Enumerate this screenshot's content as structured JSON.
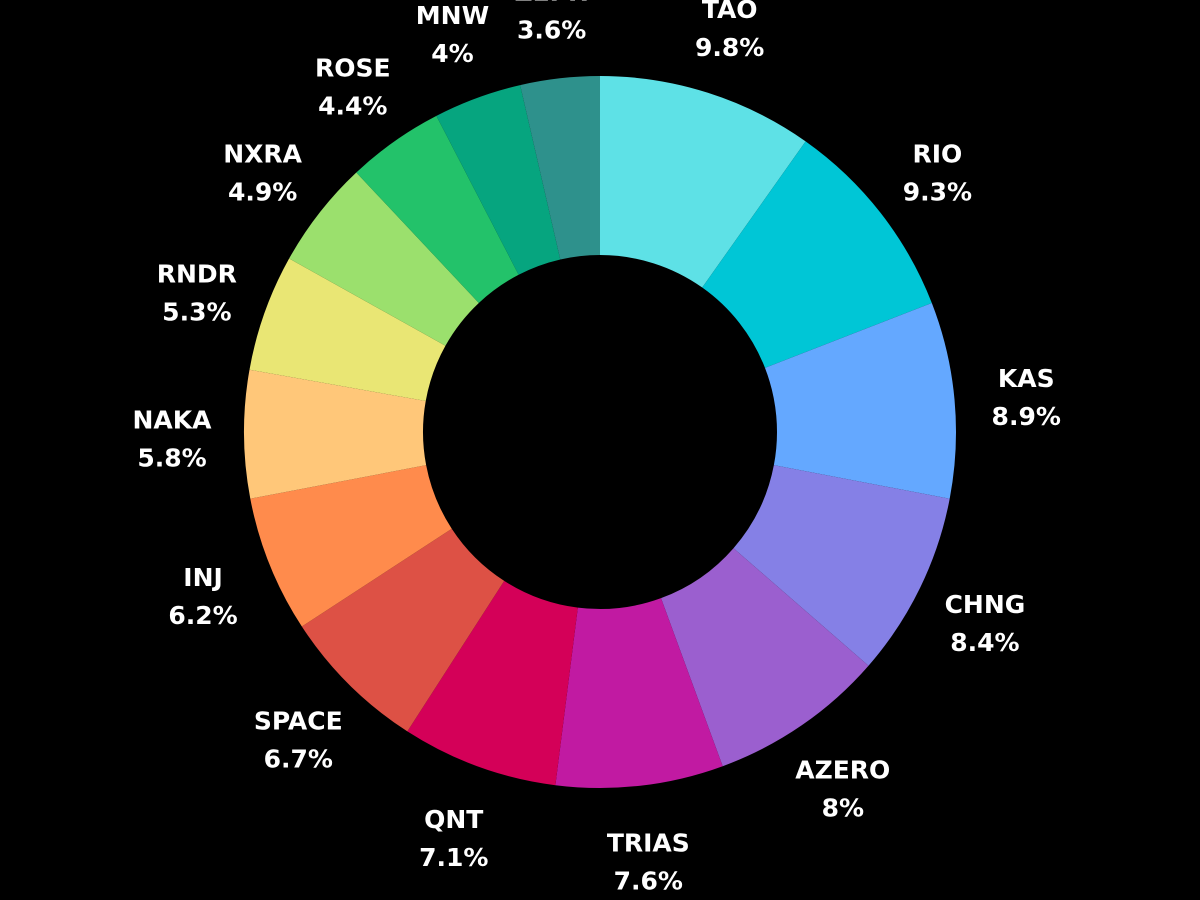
{
  "chart_data": {
    "type": "pie",
    "style": "donut",
    "start_at": "top",
    "direction": "clockwise",
    "slices": [
      {
        "label": "TAO",
        "value": 9.8,
        "value_label": "9.8%",
        "color": "#5ee1e6"
      },
      {
        "label": "RIO",
        "value": 9.3,
        "value_label": "9.3%",
        "color": "#00c6d6"
      },
      {
        "label": "KAS",
        "value": 8.9,
        "value_label": "8.9%",
        "color": "#64a8ff"
      },
      {
        "label": "CHNG",
        "value": 8.4,
        "value_label": "8.4%",
        "color": "#8580e6"
      },
      {
        "label": "AZERO",
        "value": 8,
        "value_label": "8%",
        "color": "#9b5fcf"
      },
      {
        "label": "TRIAS",
        "value": 7.6,
        "value_label": "7.6%",
        "color": "#c11aa2"
      },
      {
        "label": "QNT",
        "value": 7.1,
        "value_label": "7.1%",
        "color": "#d40058"
      },
      {
        "label": "SPACE",
        "value": 6.7,
        "value_label": "6.7%",
        "color": "#dd5145"
      },
      {
        "label": "INJ",
        "value": 6.2,
        "value_label": "6.2%",
        "color": "#ff8b4c"
      },
      {
        "label": "NAKA",
        "value": 5.8,
        "value_label": "5.8%",
        "color": "#ffc779"
      },
      {
        "label": "RNDR",
        "value": 5.3,
        "value_label": "5.3%",
        "color": "#e9e674"
      },
      {
        "label": "NXRA",
        "value": 4.9,
        "value_label": "4.9%",
        "color": "#9be06d"
      },
      {
        "label": "ROSE",
        "value": 4.4,
        "value_label": "4.4%",
        "color": "#23c26a"
      },
      {
        "label": "MNW",
        "value": 4,
        "value_label": "4%",
        "color": "#06a57f"
      },
      {
        "label": "ZEPH",
        "value": 3.6,
        "value_label": "3.6%",
        "color": "#2e918c"
      }
    ]
  },
  "colors": {
    "background": "#000000",
    "label_text": "#ffffff"
  }
}
